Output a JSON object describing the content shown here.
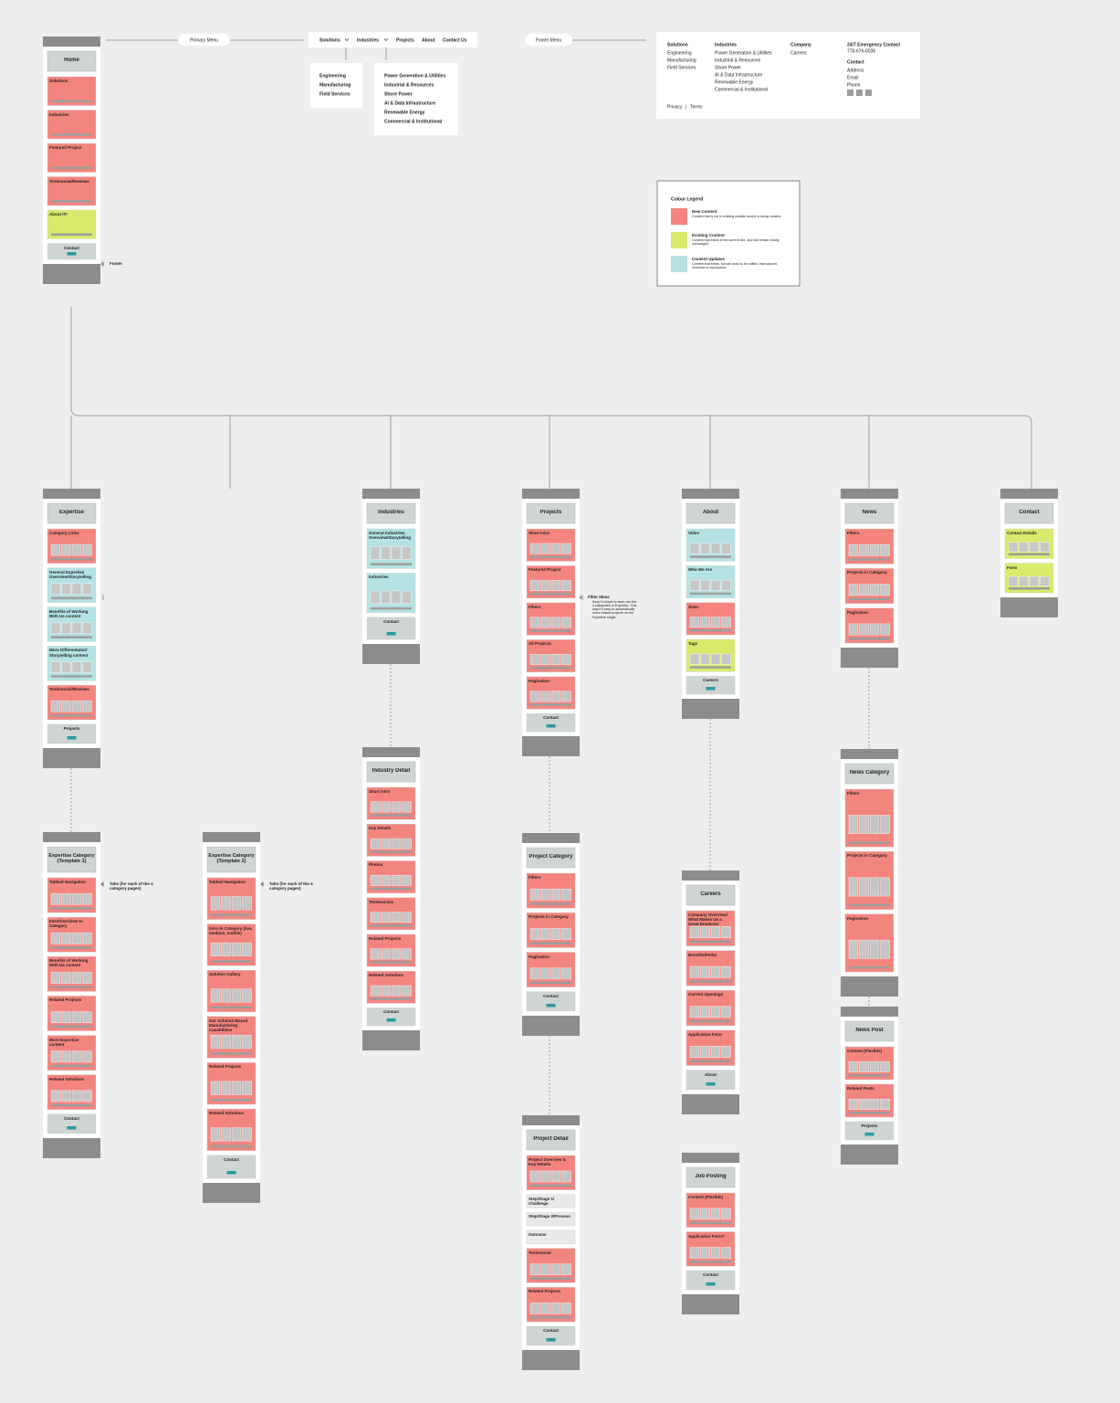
{
  "primary_menu": {
    "label": "Primary Menu",
    "nav": [
      "Solutions",
      "Industries",
      "Projects",
      "About",
      "Contact Us"
    ],
    "solutions": [
      "Engineering",
      "Manufacturing",
      "Field Services"
    ],
    "industries": [
      "Power Generation & Utilities",
      "Industrial & Resources",
      "Shore Power",
      "AI & Data Infrastructure",
      "Renewable Energy",
      "Commercial & Institutional"
    ]
  },
  "footer_menu": {
    "label": "Footer Menu",
    "columns": [
      {
        "heading": "Solutions",
        "items": [
          "Engineering",
          "Manufacturing",
          "Field Services"
        ]
      },
      {
        "heading": "Industries",
        "items": [
          "Power Generation & Utilities",
          "Industrial & Resources",
          "Shore Power",
          "AI & Data Infrastructure",
          "Renewable Energy",
          "Commercial & Institutional"
        ]
      },
      {
        "heading": "Company",
        "items": [
          "Careers"
        ]
      }
    ],
    "emergency_heading": "24/7 Emergency Contact",
    "emergency_phone": "778-676-6036",
    "contact_heading": "Contact",
    "contact_items": [
      "Address",
      "Email",
      "Phone"
    ],
    "legal": [
      "Privacy",
      "Terms"
    ]
  },
  "legend": {
    "title": "Colour Legend",
    "items": [
      {
        "name": "New Content",
        "description": "Content that is not in existing website and/or is being created.",
        "color": "#f4847e"
      },
      {
        "name": "Existing Content",
        "description": "Content that exists in the current site, and will remain mostly unchanged.",
        "color": "#d9ea6c"
      },
      {
        "name": "Content Updates",
        "description": "Content that exists, but will need to be edited, restructured, removed or repurposed.",
        "color": "#b5e2e3"
      }
    ]
  },
  "annotations": [
    {
      "title": "Footer"
    },
    {
      "title": "Filter Ideas",
      "note": "Keep it simple to start; use the 4 categories of Expertise. This way it's easy to automatically show related projects on the Expertise single."
    },
    {
      "title": "Tabs (for each of the 4 category pages)"
    },
    {
      "title": "Tabs (for each of the 4 category pages)"
    }
  ],
  "pages": [
    {
      "title": "Home",
      "sections": [
        {
          "label": "Solutions",
          "color": "#f4847e"
        },
        {
          "label": "Industries",
          "color": "#f4847e"
        },
        {
          "label": "Featured Project",
          "color": "#f4847e"
        },
        {
          "label": "Testimonial/Reviews",
          "color": "#f4847e"
        },
        {
          "label": "About ITI",
          "color": "#d9ea6c"
        },
        {
          "label": "Contact",
          "color": "#cfd4d4"
        }
      ]
    },
    {
      "title": "Expertise",
      "sections": [
        {
          "label": "Category Links",
          "color": "#f4847e"
        },
        {
          "label": "General Expertise Overview/Storytelling",
          "color": "#b5e2e3"
        },
        {
          "label": "Benefits of Working With Us content",
          "color": "#b5e2e3"
        },
        {
          "label": "More Differentiator/ Storytelling content",
          "color": "#b5e2e3"
        },
        {
          "label": "Testimonial/Reviews",
          "color": "#f4847e"
        },
        {
          "label": "Projects",
          "color": "#cfd4d4"
        }
      ]
    },
    {
      "title": "Industries",
      "sections": [
        {
          "label": "General Industries Overview/Storytelling",
          "color": "#b5e2e3"
        },
        {
          "label": "Industries",
          "color": "#b5e2e3"
        },
        {
          "label": "Contact",
          "color": "#cfd4d4"
        }
      ]
    },
    {
      "title": "Projects",
      "sections": [
        {
          "label": "Short Intro",
          "color": "#f4847e"
        },
        {
          "label": "Featured Project",
          "color": "#f4847e"
        },
        {
          "label": "Filters",
          "color": "#f4847e"
        },
        {
          "label": "All Projects",
          "color": "#f4847e"
        },
        {
          "label": "Pagination",
          "color": "#f4847e"
        },
        {
          "label": "Contact",
          "color": "#cfd4d4"
        }
      ]
    },
    {
      "title": "About",
      "sections": [
        {
          "label": "Video",
          "color": "#b5e2e3"
        },
        {
          "label": "Who We Are",
          "color": "#b5e2e3"
        },
        {
          "label": "Stats",
          "color": "#f4847e"
        },
        {
          "label": "Tags",
          "color": "#d9ea6c"
        },
        {
          "label": "Careers",
          "color": "#cfd4d4"
        }
      ]
    },
    {
      "title": "News",
      "sections": [
        {
          "label": "Filters",
          "color": "#f4847e"
        },
        {
          "label": "Projects in Category",
          "color": "#f4847e"
        },
        {
          "label": "Pagination",
          "color": "#f4847e"
        }
      ]
    },
    {
      "title": "Contact",
      "sections": [
        {
          "label": "Contact Details",
          "color": "#d9ea6c"
        },
        {
          "label": "Form",
          "color": "#d9ea6c"
        }
      ]
    },
    {
      "title": "Expertise Category (Template 1)",
      "sections": [
        {
          "label": "Tabbed Navigation",
          "color": "#f4847e"
        },
        {
          "label": "Intro/Overview to Category",
          "color": "#f4847e"
        },
        {
          "label": "Benefits of Working With Us content",
          "color": "#f4847e"
        },
        {
          "label": "Related Projects",
          "color": "#f4847e"
        },
        {
          "label": "More Expertise content",
          "color": "#f4847e"
        },
        {
          "label": "Related Solutions",
          "color": "#f4847e"
        },
        {
          "label": "Contact",
          "color": "#cfd4d4"
        }
      ]
    },
    {
      "title": "Expertise Category (Template 2)",
      "sections": [
        {
          "label": "Tabbed Navigation",
          "color": "#f4847e"
        },
        {
          "label": "Intro to Category (low, medium, mobile)",
          "color": "#f4847e"
        },
        {
          "label": "Solution Gallery",
          "color": "#f4847e"
        },
        {
          "label": "Our Solution-Based Manufacturing Capabilities",
          "color": "#f4847e"
        },
        {
          "label": "Related Projects",
          "color": "#f4847e"
        },
        {
          "label": "Related Solutions",
          "color": "#f4847e"
        },
        {
          "label": "Contact",
          "color": "#cfd4d4"
        }
      ]
    },
    {
      "title": "Industry Detail",
      "sections": [
        {
          "label": "Short Intro",
          "color": "#f4847e"
        },
        {
          "label": "Key Details",
          "color": "#f4847e"
        },
        {
          "label": "Photos",
          "color": "#f4847e"
        },
        {
          "label": "Testimonials",
          "color": "#f4847e"
        },
        {
          "label": "Related Projects",
          "color": "#f4847e"
        },
        {
          "label": "Related Solutions",
          "color": "#f4847e"
        },
        {
          "label": "Contact",
          "color": "#cfd4d4"
        }
      ]
    },
    {
      "title": "Project Category",
      "sections": [
        {
          "label": "Filters",
          "color": "#f4847e"
        },
        {
          "label": "Projects in Category",
          "color": "#f4847e"
        },
        {
          "label": "Pagination",
          "color": "#f4847e"
        },
        {
          "label": "Contact",
          "color": "#cfd4d4"
        }
      ]
    },
    {
      "title": "Project Detail",
      "sections": [
        {
          "label": "Project Overview & Key Details",
          "color": "#f4847e"
        },
        {
          "label": "Step/Stage 1/ Challenge",
          "color": "#e8e9e9"
        },
        {
          "label": "Step/Stage 2/Process",
          "color": "#e8e9e9"
        },
        {
          "label": "Outcome",
          "color": "#e8e9e9"
        },
        {
          "label": "Testimonial",
          "color": "#f4847e"
        },
        {
          "label": "Related Projects",
          "color": "#f4847e"
        },
        {
          "label": "Contact",
          "color": "#cfd4d4"
        }
      ]
    },
    {
      "title": "Careers",
      "sections": [
        {
          "label": "Company Overview/ What Makes Us a Great Employer content",
          "color": "#f4847e"
        },
        {
          "label": "Benefits/Perks",
          "color": "#f4847e"
        },
        {
          "label": "Current Openings",
          "color": "#f4847e"
        },
        {
          "label": "Application Form",
          "color": "#f4847e"
        },
        {
          "label": "About",
          "color": "#cfd4d4"
        }
      ]
    },
    {
      "title": "Job Posting",
      "sections": [
        {
          "label": "Content (Flexible)",
          "color": "#f4847e"
        },
        {
          "label": "Application Form?",
          "color": "#f4847e"
        },
        {
          "label": "Contact",
          "color": "#cfd4d4"
        }
      ]
    },
    {
      "title": "News Category",
      "sections": [
        {
          "label": "Filters",
          "color": "#f4847e"
        },
        {
          "label": "Projects in Category",
          "color": "#f4847e"
        },
        {
          "label": "Pagination",
          "color": "#f4847e"
        }
      ]
    },
    {
      "title": "News Post",
      "sections": [
        {
          "label": "Content (Flexible)",
          "color": "#f4847e"
        },
        {
          "label": "Related Posts",
          "color": "#f4847e"
        },
        {
          "label": "Projects",
          "color": "#cfd4d4"
        }
      ]
    }
  ]
}
